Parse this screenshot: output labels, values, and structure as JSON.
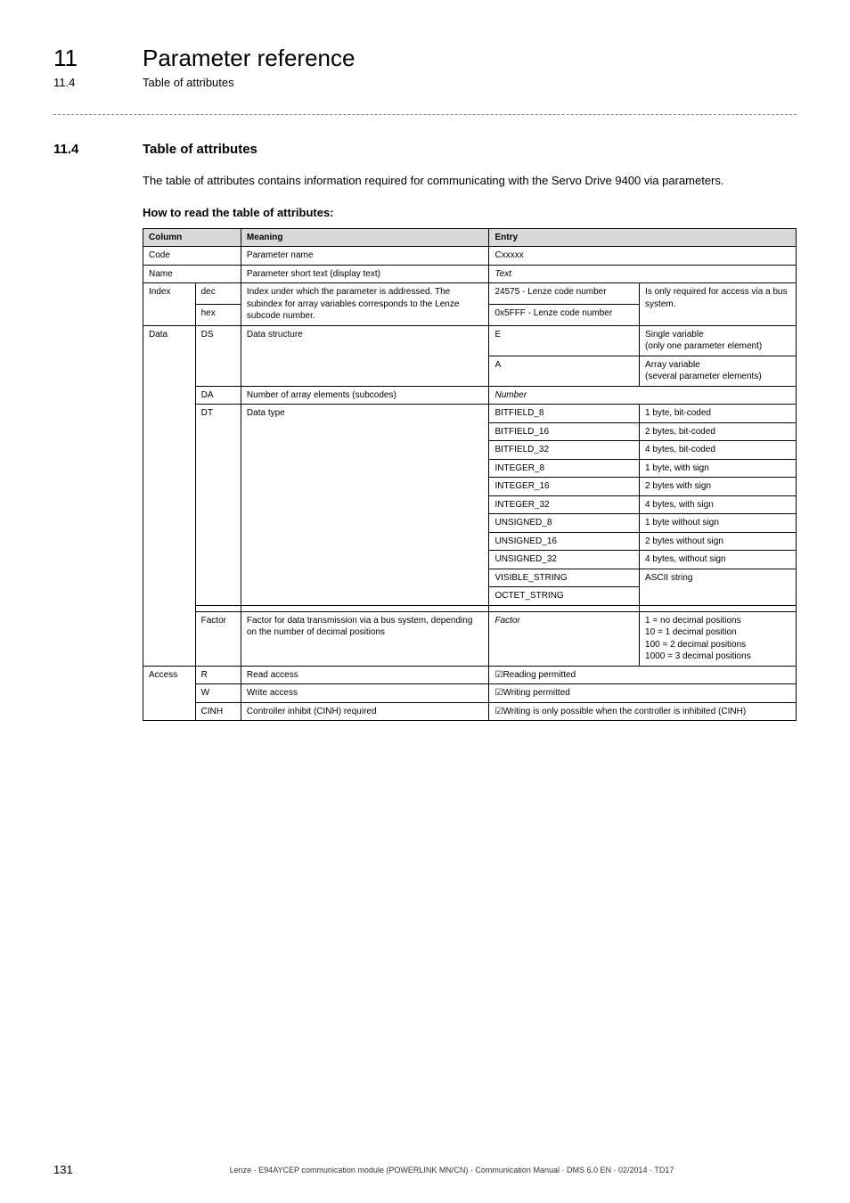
{
  "header": {
    "chapter_number": "11",
    "chapter_title": "Parameter reference",
    "section_number": "11.4",
    "section_title": "Table of attributes"
  },
  "section": {
    "number": "11.4",
    "heading": "Table of attributes",
    "paragraph": "The table of attributes contains information required for communicating with the Servo Drive 9400 via parameters.",
    "subheading": "How to read the table of attributes:"
  },
  "table": {
    "header": {
      "column": "Column",
      "meaning": "Meaning",
      "entry": "Entry"
    },
    "rows": {
      "code": {
        "label": "Code",
        "meaning": "Parameter name",
        "entry": "Cxxxxx"
      },
      "name": {
        "label": "Name",
        "meaning": "Parameter short text (display text)",
        "entry": "Text"
      },
      "index": {
        "label": "Index",
        "dec": "dec",
        "hex": "hex",
        "meaning_dec": "Index under which the parameter is addressed. The subindex for array variables corresponds to the Lenze subcode number.",
        "entry_dec": "24575 - Lenze code number",
        "entry_hex": "0x5FFF - Lenze code number",
        "note": "Is only required for access via a bus system."
      },
      "data": {
        "label": "Data",
        "ds": "DS",
        "ds_meaning": "Data structure",
        "ds_e": "E",
        "ds_e_note": "Single variable\n(only one parameter element)",
        "ds_a": "A",
        "ds_a_note": "Array variable\n(several parameter elements)",
        "da": "DA",
        "da_meaning": "Number of array elements (subcodes)",
        "da_entry": "Number",
        "dt": "DT",
        "dt_meaning": "Data type",
        "dt_entries": [
          {
            "code": "BITFIELD_8",
            "desc": "1 byte, bit-coded"
          },
          {
            "code": "BITFIELD_16",
            "desc": "2 bytes, bit-coded"
          },
          {
            "code": "BITFIELD_32",
            "desc": "4 bytes, bit-coded"
          },
          {
            "code": "INTEGER_8",
            "desc": "1 byte, with sign"
          },
          {
            "code": "INTEGER_16",
            "desc": "2 bytes with sign"
          },
          {
            "code": "INTEGER_32",
            "desc": "4 bytes, with sign"
          },
          {
            "code": "UNSIGNED_8",
            "desc": "1 byte without sign"
          },
          {
            "code": "UNSIGNED_16",
            "desc": "2 bytes without sign"
          },
          {
            "code": "UNSIGNED_32",
            "desc": "4 bytes, without sign"
          },
          {
            "code": "VISIBLE_STRING",
            "desc": "ASCII string"
          },
          {
            "code": "OCTET_STRING",
            "desc": ""
          }
        ],
        "factor": "Factor",
        "factor_meaning": "Factor for data transmission via a bus system, depending on the number of decimal positions",
        "factor_entry": "Factor",
        "factor_note": "1 = no decimal positions\n10 = 1 decimal position\n100 = 2 decimal positions\n1000 = 3 decimal positions"
      },
      "access": {
        "label": "Access",
        "r": "R",
        "r_meaning": "Read access",
        "r_entry": "Reading permitted",
        "w": "W",
        "w_meaning": "Write access",
        "w_entry": "Writing permitted",
        "cinh": "CINH",
        "cinh_meaning": "Controller inhibit (CINH) required",
        "cinh_entry": "Writing is only possible when the controller is inhibited (CINH)"
      }
    }
  },
  "footer": {
    "page_number": "131",
    "footer_text": "Lenze · E94AYCEP communication module (POWERLINK MN/CN) · Communication Manual · DMS 6.0 EN · 02/2014 · TD17"
  }
}
